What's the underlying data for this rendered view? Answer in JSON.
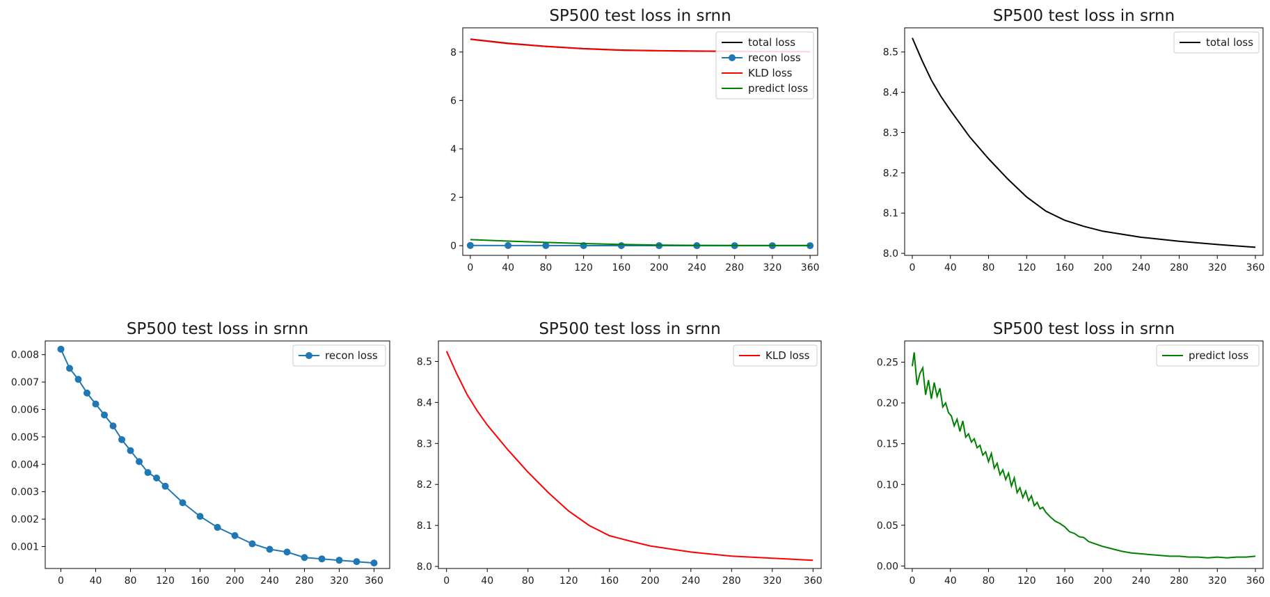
{
  "chart_data": [
    {
      "id": "all-losses",
      "type": "line",
      "title": "SP500 test loss in srnn",
      "xlim": [
        -8,
        368
      ],
      "ylim": [
        -0.4,
        9.0
      ],
      "xticks": [
        0,
        40,
        80,
        120,
        160,
        200,
        240,
        280,
        320,
        360
      ],
      "yticks": [
        0,
        2,
        4,
        6,
        8
      ],
      "grid": false,
      "legend_position": "top-right",
      "series": [
        {
          "name": "total loss",
          "color": "#000000",
          "marker": "none",
          "x": [
            0,
            40,
            80,
            120,
            160,
            200,
            240,
            280,
            320,
            360
          ],
          "y": [
            8.535,
            8.36,
            8.235,
            8.14,
            8.08,
            8.055,
            8.04,
            8.03,
            8.022,
            8.015
          ]
        },
        {
          "name": "recon loss",
          "color": "#1f77b4",
          "marker": "circle",
          "x": [
            0,
            40,
            80,
            120,
            160,
            200,
            240,
            280,
            320,
            360
          ],
          "y": [
            0.0082,
            0.0062,
            0.0045,
            0.0033,
            0.0021,
            0.0014,
            0.0009,
            0.0006,
            0.0005,
            0.0004
          ]
        },
        {
          "name": "KLD loss",
          "color": "#ff0000",
          "marker": "none",
          "x": [
            0,
            40,
            80,
            120,
            160,
            200,
            240,
            280,
            320,
            360
          ],
          "y": [
            8.525,
            8.35,
            8.23,
            8.135,
            8.075,
            8.05,
            8.035,
            8.025,
            8.02,
            8.015
          ]
        },
        {
          "name": "predict loss",
          "color": "#008000",
          "marker": "none",
          "x": [
            0,
            40,
            80,
            120,
            160,
            200,
            240,
            280,
            320,
            360
          ],
          "y": [
            0.25,
            0.19,
            0.135,
            0.09,
            0.05,
            0.025,
            0.015,
            0.012,
            0.011,
            0.012
          ]
        }
      ]
    },
    {
      "id": "total-loss",
      "type": "line",
      "title": "SP500 test loss in srnn",
      "xlim": [
        -8,
        368
      ],
      "ylim": [
        7.995,
        8.56
      ],
      "xticks": [
        0,
        40,
        80,
        120,
        160,
        200,
        240,
        280,
        320,
        360
      ],
      "yticks": [
        8.0,
        8.1,
        8.2,
        8.3,
        8.4,
        8.5
      ],
      "ytick_format": "1",
      "grid": false,
      "legend_position": "top-right",
      "series": [
        {
          "name": "total loss",
          "color": "#000000",
          "marker": "none",
          "x": [
            0,
            10,
            20,
            30,
            40,
            60,
            80,
            100,
            120,
            140,
            160,
            180,
            200,
            240,
            280,
            320,
            360
          ],
          "y": [
            8.535,
            8.48,
            8.43,
            8.39,
            8.355,
            8.29,
            8.235,
            8.185,
            8.14,
            8.105,
            8.082,
            8.067,
            8.055,
            8.04,
            8.03,
            8.022,
            8.015
          ]
        }
      ]
    },
    {
      "id": "recon-loss",
      "type": "scatter",
      "title": "SP500 test loss in srnn",
      "xlim": [
        -18,
        378
      ],
      "ylim": [
        0.0002,
        0.0085
      ],
      "xticks": [
        0,
        40,
        80,
        120,
        160,
        200,
        240,
        280,
        320,
        360
      ],
      "yticks": [
        0.001,
        0.002,
        0.003,
        0.004,
        0.005,
        0.006,
        0.007,
        0.008
      ],
      "ytick_format": "3",
      "grid": false,
      "legend_position": "top-right",
      "series": [
        {
          "name": "recon loss",
          "color": "#1f77b4",
          "marker": "circle",
          "x": [
            0,
            10,
            20,
            30,
            40,
            50,
            60,
            70,
            80,
            90,
            100,
            110,
            120,
            140,
            160,
            180,
            200,
            220,
            240,
            260,
            280,
            300,
            320,
            340,
            360
          ],
          "y": [
            0.0082,
            0.0075,
            0.0071,
            0.0066,
            0.0062,
            0.0058,
            0.0054,
            0.0049,
            0.0045,
            0.0041,
            0.0037,
            0.0035,
            0.0032,
            0.0026,
            0.0021,
            0.0017,
            0.0014,
            0.0011,
            0.0009,
            0.0008,
            0.0006,
            0.00055,
            0.0005,
            0.00045,
            0.0004
          ]
        }
      ]
    },
    {
      "id": "kld-loss",
      "type": "line",
      "title": "SP500 test loss in srnn",
      "xlim": [
        -8,
        368
      ],
      "ylim": [
        7.995,
        8.55
      ],
      "xticks": [
        0,
        40,
        80,
        120,
        160,
        200,
        240,
        280,
        320,
        360
      ],
      "yticks": [
        8.0,
        8.1,
        8.2,
        8.3,
        8.4,
        8.5
      ],
      "ytick_format": "1",
      "grid": false,
      "legend_position": "top-right",
      "series": [
        {
          "name": "KLD loss",
          "color": "#ff0000",
          "marker": "none",
          "x": [
            0,
            10,
            20,
            30,
            40,
            60,
            80,
            100,
            120,
            140,
            160,
            180,
            200,
            240,
            280,
            320,
            360
          ],
          "y": [
            8.525,
            8.47,
            8.42,
            8.38,
            8.345,
            8.285,
            8.23,
            8.18,
            8.135,
            8.1,
            8.075,
            8.062,
            8.05,
            8.035,
            8.025,
            8.02,
            8.015
          ]
        }
      ]
    },
    {
      "id": "predict-loss",
      "type": "line",
      "title": "SP500 test loss in srnn",
      "xlim": [
        -8,
        368
      ],
      "ylim": [
        -0.003,
        0.276
      ],
      "xticks": [
        0,
        40,
        80,
        120,
        160,
        200,
        240,
        280,
        320,
        360
      ],
      "yticks": [
        0.0,
        0.05,
        0.1,
        0.15,
        0.2,
        0.25
      ],
      "ytick_format": "2",
      "grid": false,
      "legend_position": "top-right",
      "series": [
        {
          "name": "predict loss",
          "color": "#008000",
          "marker": "none",
          "x": [
            0,
            2,
            5,
            8,
            11,
            14,
            17,
            20,
            23,
            26,
            29,
            32,
            35,
            38,
            41,
            44,
            47,
            50,
            53,
            56,
            59,
            62,
            65,
            68,
            71,
            74,
            77,
            80,
            83,
            86,
            89,
            92,
            95,
            98,
            101,
            104,
            107,
            110,
            113,
            116,
            119,
            122,
            125,
            128,
            131,
            134,
            137,
            140,
            145,
            150,
            155,
            160,
            165,
            170,
            175,
            180,
            185,
            190,
            200,
            210,
            220,
            230,
            240,
            250,
            260,
            270,
            280,
            290,
            300,
            310,
            320,
            330,
            340,
            350,
            360
          ],
          "y": [
            0.245,
            0.262,
            0.222,
            0.236,
            0.243,
            0.21,
            0.228,
            0.205,
            0.225,
            0.208,
            0.218,
            0.195,
            0.2,
            0.188,
            0.184,
            0.172,
            0.18,
            0.165,
            0.178,
            0.158,
            0.162,
            0.152,
            0.156,
            0.145,
            0.148,
            0.136,
            0.14,
            0.128,
            0.138,
            0.12,
            0.126,
            0.112,
            0.118,
            0.106,
            0.114,
            0.098,
            0.108,
            0.09,
            0.096,
            0.084,
            0.092,
            0.08,
            0.086,
            0.074,
            0.078,
            0.07,
            0.072,
            0.066,
            0.06,
            0.055,
            0.052,
            0.048,
            0.042,
            0.04,
            0.036,
            0.035,
            0.03,
            0.028,
            0.024,
            0.021,
            0.018,
            0.016,
            0.015,
            0.014,
            0.013,
            0.012,
            0.012,
            0.011,
            0.011,
            0.01,
            0.011,
            0.01,
            0.011,
            0.011,
            0.012
          ]
        }
      ]
    }
  ]
}
